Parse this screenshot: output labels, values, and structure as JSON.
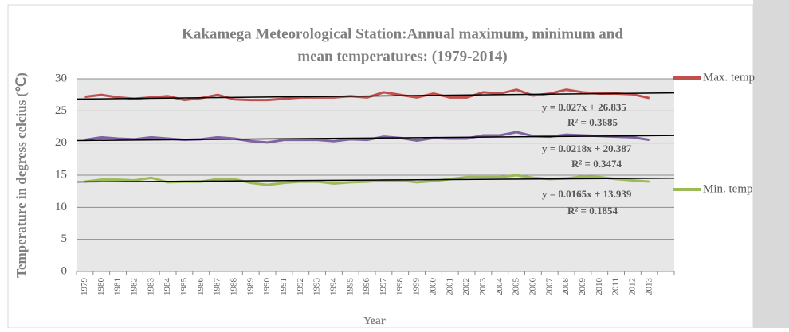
{
  "chart_data": {
    "type": "line",
    "title": [
      "Kakamega Meteorological Station:Annual  maximum,  minimum  and",
      "mean temperatures:  (1979-2014)"
    ],
    "x_label": "Year",
    "y_label": "Temperature in degress celcius (℃)",
    "categories": [
      "1979",
      "1980",
      "1981",
      "1982",
      "1983",
      "1984",
      "1985",
      "1986",
      "1987",
      "1988",
      "1989",
      "1990",
      "1991",
      "1992",
      "1993",
      "1994",
      "1995",
      "1996",
      "1997",
      "1998",
      "1999",
      "2000",
      "2001",
      "2002",
      "2003",
      "2004",
      "2005",
      "2006",
      "2007",
      "2008",
      "2009",
      "2010",
      "2011",
      "2012",
      "2013"
    ],
    "ylim": [
      0,
      30
    ],
    "yticks": [
      0,
      5,
      10,
      15,
      20,
      25,
      30
    ],
    "grid": true,
    "series": [
      {
        "name": "Max. temp",
        "color": "#c0504d",
        "values": [
          27.2,
          27.5,
          27.1,
          26.9,
          27.1,
          27.3,
          26.7,
          27.0,
          27.5,
          26.8,
          26.7,
          26.7,
          26.9,
          27.1,
          27.1,
          27.1,
          27.3,
          27.1,
          27.9,
          27.5,
          27.1,
          27.7,
          27.1,
          27.1,
          27.9,
          27.7,
          28.3,
          27.4,
          27.7,
          28.3,
          27.9,
          27.7,
          27.7,
          27.6,
          27.0
        ],
        "trend": {
          "slope": 0.027,
          "intercept": 26.835,
          "label": "y = 0.027x + 26.835",
          "r2": "R² = 0.3685"
        }
      },
      {
        "color": "#8064a2",
        "values": [
          20.5,
          20.9,
          20.7,
          20.6,
          20.9,
          20.7,
          20.5,
          20.6,
          20.9,
          20.7,
          20.3,
          20.1,
          20.5,
          20.5,
          20.5,
          20.3,
          20.6,
          20.5,
          21.0,
          20.8,
          20.4,
          20.8,
          20.7,
          20.7,
          21.2,
          21.2,
          21.7,
          21.1,
          21.0,
          21.3,
          21.2,
          21.1,
          21.0,
          20.9,
          20.5
        ],
        "trend": {
          "slope": 0.0218,
          "intercept": 20.387,
          "label": "y = 0.0218x + 20.387",
          "r2": "R² = 0.3474"
        }
      },
      {
        "name": "Min. temp",
        "color": "#9bbb59",
        "values": [
          14.0,
          14.3,
          14.3,
          14.2,
          14.6,
          13.9,
          14.0,
          14.0,
          14.4,
          14.4,
          13.8,
          13.5,
          13.8,
          14.0,
          14.0,
          13.7,
          13.9,
          14.0,
          14.2,
          14.2,
          13.9,
          14.1,
          14.4,
          14.7,
          14.7,
          14.7,
          15.0,
          14.6,
          14.4,
          14.5,
          14.8,
          14.7,
          14.4,
          14.2,
          14.0
        ],
        "trend": {
          "slope": 0.0165,
          "intercept": 13.939,
          "label": "y = 0.0165x + 13.939",
          "r2": "R² = 0.1854"
        }
      }
    ]
  }
}
